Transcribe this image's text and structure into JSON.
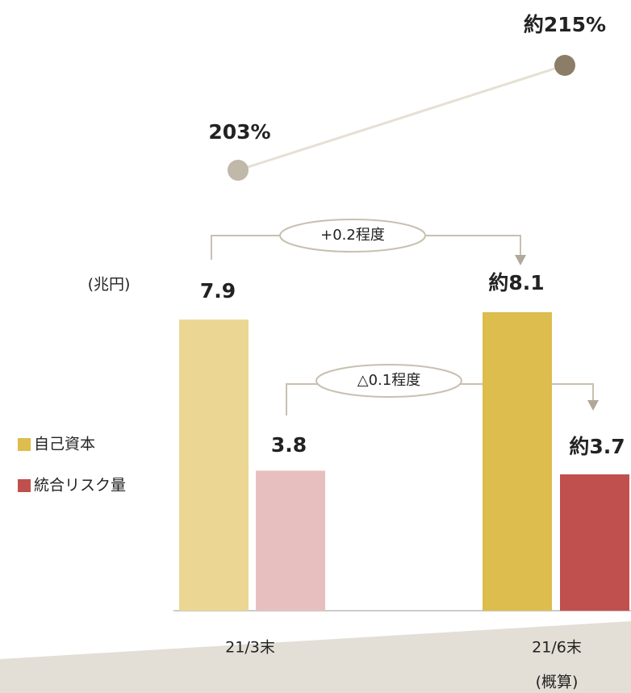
{
  "chart_data": [
    {
      "type": "bar",
      "unit_label": "(兆円)",
      "categories": [
        "21/3末",
        "21/6末"
      ],
      "category_notes": [
        null,
        "(概算)"
      ],
      "series": [
        {
          "name": "自己資本",
          "color": "#dcbd4d",
          "colors": [
            "#ebd793",
            "#dcbd4d"
          ],
          "values": [
            7.9,
            8.1
          ],
          "value_labels": [
            "7.9",
            "約8.1"
          ]
        },
        {
          "name": "統合リスク量",
          "color": "#c0504d",
          "colors": [
            "#e8bfbf",
            "#c0504d"
          ],
          "values": [
            3.8,
            3.7
          ],
          "value_labels": [
            "3.8",
            "約3.7"
          ]
        }
      ],
      "annotations": [
        "+0.2程度",
        "△0.1程度"
      ]
    },
    {
      "type": "line",
      "categories": [
        "21/3末",
        "21/6末"
      ],
      "color": "#e5e0d3",
      "colors": [
        "#c0b8a8",
        "#8c7d68"
      ],
      "values": [
        203,
        215
      ],
      "value_labels": [
        "203%",
        "約215%"
      ]
    }
  ]
}
